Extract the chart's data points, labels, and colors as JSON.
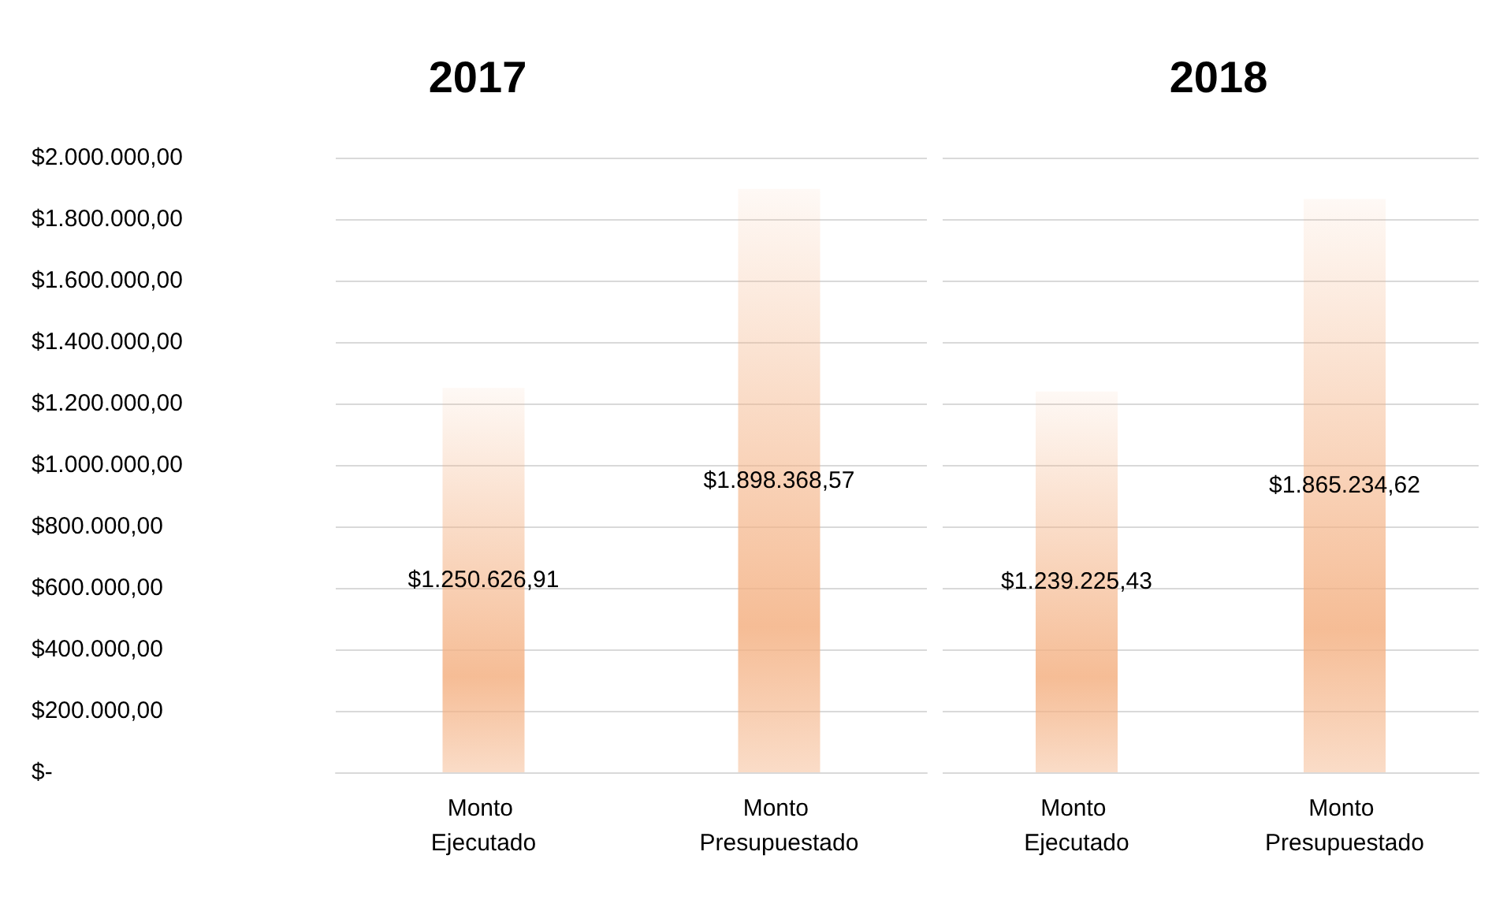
{
  "chart_data": [
    {
      "type": "bar",
      "title": "2017",
      "categories": [
        "Monto Ejecutado",
        "Monto Presupuestado"
      ],
      "values": [
        1250626.91,
        1898368.57
      ],
      "value_labels": [
        "$1.250.626,91",
        "$1.898.368,57"
      ],
      "color": "#f4b183",
      "ylim": [
        0,
        2000000
      ],
      "yticks": [
        {
          "value": 0,
          "label": "$-"
        },
        {
          "value": 200000,
          "label": "$200.000,00"
        },
        {
          "value": 400000,
          "label": "$400.000,00"
        },
        {
          "value": 600000,
          "label": "$600.000,00"
        },
        {
          "value": 800000,
          "label": "$800.000,00"
        },
        {
          "value": 1000000,
          "label": "$1.000.000,00"
        },
        {
          "value": 1200000,
          "label": "$1.200.000,00"
        },
        {
          "value": 1400000,
          "label": "$1.400.000,00"
        },
        {
          "value": 1600000,
          "label": "$1.600.000,00"
        },
        {
          "value": 1800000,
          "label": "$1.800.000,00"
        },
        {
          "value": 2000000,
          "label": "$2.000.000,00"
        }
      ],
      "grid": "y"
    },
    {
      "type": "bar",
      "title": "2018",
      "categories": [
        "Monto Ejecutado",
        "Monto Presupuestado"
      ],
      "values": [
        1239225.43,
        1865234.62
      ],
      "value_labels": [
        "$1.239.225,43",
        "$1.865.234,62"
      ],
      "color": "#f4b183",
      "ylim": [
        0,
        2000000
      ],
      "yticks": [
        0,
        200000,
        400000,
        600000,
        800000,
        1000000,
        1200000,
        1400000,
        1600000,
        1800000,
        2000000
      ],
      "grid": "y",
      "tick_labels": "x"
    }
  ]
}
